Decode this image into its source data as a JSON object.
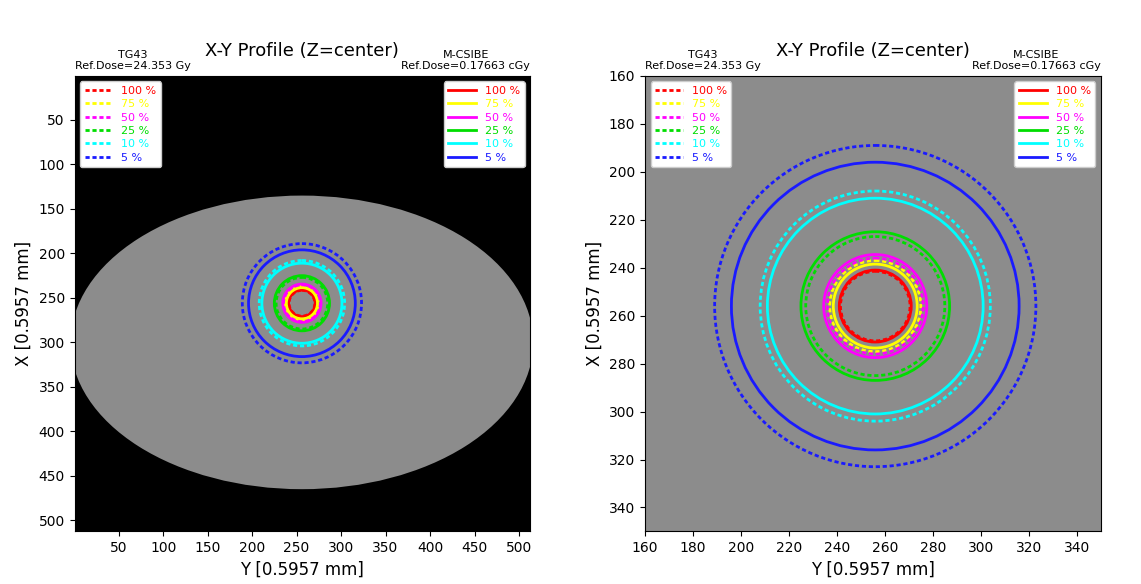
{
  "chart_data": [
    {
      "type": "contour",
      "title": "X-Y Profile (Z=center)",
      "x_label": "Y [0.5957 mm]",
      "y_label": "X [0.5957 mm]",
      "xlim": [
        0.5,
        512.5
      ],
      "ylim": [
        512.5,
        0.5
      ],
      "xticks": [
        50,
        100,
        150,
        200,
        250,
        300,
        350,
        400,
        450,
        500
      ],
      "yticks": [
        50,
        100,
        150,
        200,
        250,
        300,
        350,
        400,
        450,
        500
      ],
      "annotations": [
        "TG43\nRef.Dose=24.353 Gy",
        "M-CSIBE\nRef.Dose=0.17663 cGy"
      ],
      "series": [
        {
          "name": "100 %",
          "color": "#ff0000",
          "line_style": "dotted",
          "legend": "upper left",
          "center": [
            256,
            256
          ],
          "radius": 14.5
        },
        {
          "name": "75 %",
          "color": "#ffff00",
          "line_style": "dotted",
          "legend": "upper left",
          "center": [
            256,
            256
          ],
          "radius": 19
        },
        {
          "name": "50 %",
          "color": "#ff00ff",
          "line_style": "dotted",
          "legend": "upper left",
          "center": [
            256,
            256
          ],
          "radius": 20
        },
        {
          "name": "25 %",
          "color": "#00dd00",
          "line_style": "dotted",
          "legend": "upper left",
          "center": [
            256,
            256
          ],
          "radius": 29
        },
        {
          "name": "10 %",
          "color": "#00ffff",
          "line_style": "dotted",
          "legend": "upper left",
          "center": [
            256,
            256
          ],
          "radius": 48
        },
        {
          "name": "5 %",
          "color": "#1a1aff",
          "line_style": "dotted",
          "legend": "upper left",
          "center": [
            256,
            256
          ],
          "radius": 67
        },
        {
          "name": "100 %",
          "color": "#ff0000",
          "line_style": "solid",
          "legend": "upper right",
          "center": [
            256,
            256
          ],
          "radius": 15
        },
        {
          "name": "75 %",
          "color": "#ffff00",
          "line_style": "solid",
          "legend": "upper right",
          "center": [
            256,
            256
          ],
          "radius": 17.5
        },
        {
          "name": "50 %",
          "color": "#ff00ff",
          "line_style": "solid",
          "legend": "upper right",
          "center": [
            256,
            256
          ],
          "radius": 21.5
        },
        {
          "name": "25 %",
          "color": "#00dd00",
          "line_style": "solid",
          "legend": "upper right",
          "center": [
            256,
            256
          ],
          "radius": 31
        },
        {
          "name": "10 %",
          "color": "#00ffff",
          "line_style": "solid",
          "legend": "upper right",
          "center": [
            256,
            256
          ],
          "radius": 45
        },
        {
          "name": "5 %",
          "color": "#1a1aff",
          "line_style": "solid",
          "legend": "upper right",
          "center": [
            256,
            256
          ],
          "radius": 60
        }
      ]
    },
    {
      "type": "contour",
      "title": "X-Y Profile (Z=center)",
      "x_label": "Y [0.5957 mm]",
      "y_label": "X [0.5957 mm]",
      "xlim": [
        160,
        350
      ],
      "ylim": [
        350,
        160
      ],
      "xticks": [
        160,
        180,
        200,
        220,
        240,
        260,
        280,
        300,
        320,
        340
      ],
      "yticks": [
        160,
        180,
        200,
        220,
        240,
        260,
        280,
        300,
        320,
        340
      ],
      "annotations": [
        "TG43\nRef.Dose=24.353 Gy",
        "M-CSIBE\nRef.Dose=0.17663 cGy"
      ],
      "series": [
        {
          "name": "100 %",
          "color": "#ff0000",
          "line_style": "dotted",
          "legend": "upper left",
          "center": [
            256,
            256
          ],
          "radius": 14.5
        },
        {
          "name": "75 %",
          "color": "#ffff00",
          "line_style": "dotted",
          "legend": "upper left",
          "center": [
            256,
            256
          ],
          "radius": 19
        },
        {
          "name": "50 %",
          "color": "#ff00ff",
          "line_style": "dotted",
          "legend": "upper left",
          "center": [
            256,
            256
          ],
          "radius": 20
        },
        {
          "name": "25 %",
          "color": "#00dd00",
          "line_style": "dotted",
          "legend": "upper left",
          "center": [
            256,
            256
          ],
          "radius": 29
        },
        {
          "name": "10 %",
          "color": "#00ffff",
          "line_style": "dotted",
          "legend": "upper left",
          "center": [
            256,
            256
          ],
          "radius": 48
        },
        {
          "name": "5 %",
          "color": "#1a1aff",
          "line_style": "dotted",
          "legend": "upper left",
          "center": [
            256,
            256
          ],
          "radius": 67
        },
        {
          "name": "100 %",
          "color": "#ff0000",
          "line_style": "solid",
          "legend": "upper right",
          "center": [
            256,
            256
          ],
          "radius": 15
        },
        {
          "name": "75 %",
          "color": "#ffff00",
          "line_style": "solid",
          "legend": "upper right",
          "center": [
            256,
            256
          ],
          "radius": 17.5
        },
        {
          "name": "50 %",
          "color": "#ff00ff",
          "line_style": "solid",
          "legend": "upper right",
          "center": [
            256,
            256
          ],
          "radius": 21.5
        },
        {
          "name": "25 %",
          "color": "#00dd00",
          "line_style": "solid",
          "legend": "upper right",
          "center": [
            256,
            256
          ],
          "radius": 31
        },
        {
          "name": "10 %",
          "color": "#00ffff",
          "line_style": "solid",
          "legend": "upper right",
          "center": [
            256,
            256
          ],
          "radius": 45
        },
        {
          "name": "5 %",
          "color": "#1a1aff",
          "line_style": "solid",
          "legend": "upper right",
          "center": [
            256,
            256
          ],
          "radius": 60
        }
      ]
    }
  ]
}
